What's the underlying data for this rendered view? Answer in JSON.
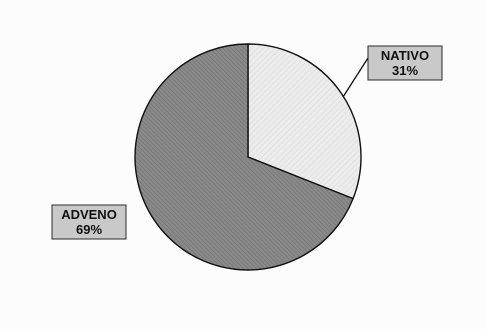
{
  "chart_data": {
    "type": "pie",
    "title": "",
    "slices": [
      {
        "label": "NATIVO",
        "value": 31,
        "value_label": "31%",
        "color": "#e8e8e8"
      },
      {
        "label": "ADVENO",
        "value": 69,
        "value_label": "69%",
        "color": "#8c8c8c"
      }
    ],
    "start_angle_deg": 0,
    "direction": "clockwise",
    "legend": "none",
    "label_box_color": "#c9c9c9"
  }
}
